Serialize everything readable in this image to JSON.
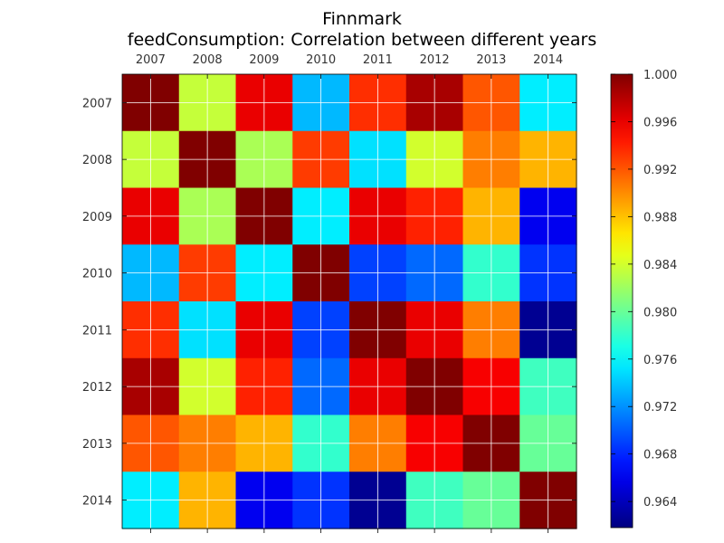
{
  "chart_data": {
    "type": "heatmap",
    "title_lines": [
      "Finnmark",
      "feedConsumption: Correlation between different years"
    ],
    "x_labels": [
      "2007",
      "2008",
      "2009",
      "2010",
      "2011",
      "2012",
      "2013",
      "2014"
    ],
    "y_labels": [
      "2007",
      "2008",
      "2009",
      "2010",
      "2011",
      "2012",
      "2013",
      "2014"
    ],
    "x_tick_position": "top",
    "colormap": "jet",
    "vmin": 0.9618,
    "vmax": 1.0,
    "grid": true,
    "matrix": [
      [
        1.0,
        0.9835,
        0.996,
        0.9735,
        0.9935,
        0.9985,
        0.992,
        0.9755
      ],
      [
        0.9835,
        1.0,
        0.9825,
        0.993,
        0.975,
        0.984,
        0.9905,
        0.9885
      ],
      [
        0.996,
        0.9825,
        1.0,
        0.9755,
        0.996,
        0.994,
        0.9885,
        0.966
      ],
      [
        0.9735,
        0.993,
        0.9755,
        1.0,
        0.969,
        0.9705,
        0.978,
        0.9685
      ],
      [
        0.9935,
        0.975,
        0.996,
        0.969,
        1.0,
        0.996,
        0.9905,
        0.9625
      ],
      [
        0.9985,
        0.984,
        0.994,
        0.9705,
        0.996,
        1.0,
        0.9955,
        0.9785
      ],
      [
        0.992,
        0.9905,
        0.9885,
        0.978,
        0.9905,
        0.9955,
        1.0,
        0.98
      ],
      [
        0.9755,
        0.9885,
        0.966,
        0.9685,
        0.9625,
        0.9785,
        0.98,
        1.0
      ]
    ],
    "colorbar": {
      "ticks": [
        1.0,
        0.996,
        0.992,
        0.988,
        0.984,
        0.98,
        0.976,
        0.972,
        0.968,
        0.964
      ],
      "tick_labels": [
        "1.000",
        "0.996",
        "0.992",
        "0.988",
        "0.984",
        "0.980",
        "0.976",
        "0.972",
        "0.968",
        "0.964"
      ]
    }
  }
}
